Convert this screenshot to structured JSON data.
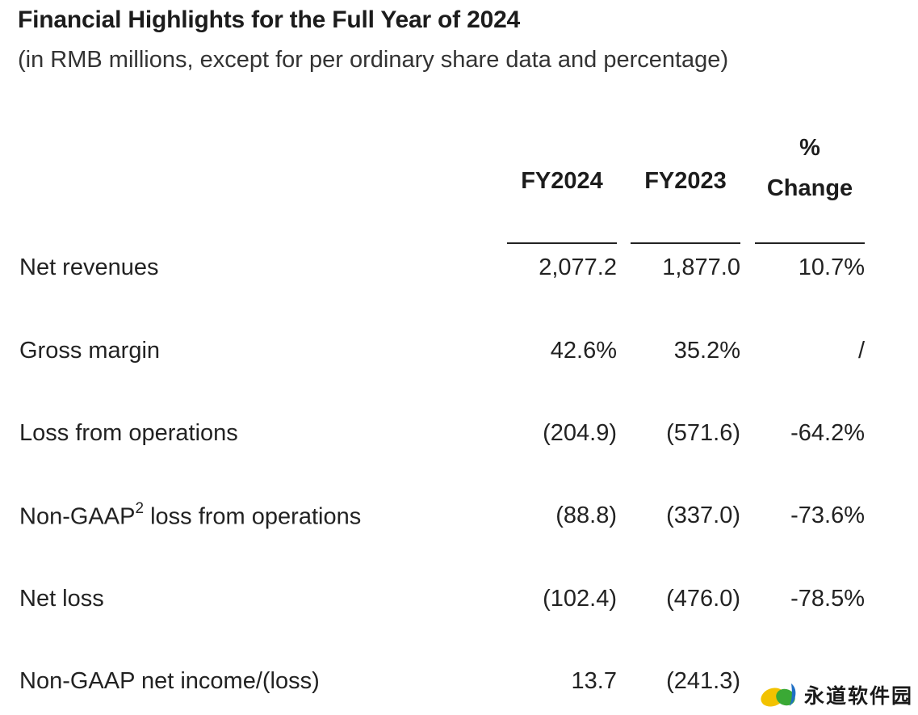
{
  "header": {
    "title": "Financial Highlights for the Full Year of 2024",
    "subtitle": "(in RMB millions, except for per ordinary share data and percentage)"
  },
  "table": {
    "columns": [
      {
        "line1": "",
        "line2": "FY2024"
      },
      {
        "line1": "",
        "line2": "FY2023"
      },
      {
        "line1": "%",
        "line2": "Change"
      }
    ],
    "rows": [
      {
        "label": "Net revenues",
        "sup": "",
        "label_rest": "",
        "fy2024": "2,077.2",
        "fy2023": "1,877.0",
        "change": "10.7%"
      },
      {
        "label": "Gross margin",
        "sup": "",
        "label_rest": "",
        "fy2024": "42.6%",
        "fy2023": "35.2%",
        "change": "/"
      },
      {
        "label": "Loss from operations",
        "sup": "",
        "label_rest": "",
        "fy2024": "(204.9)",
        "fy2023": "(571.6)",
        "change": "-64.2%"
      },
      {
        "label": "Non-GAAP",
        "sup": "2",
        "label_rest": " loss from operations",
        "fy2024": "(88.8)",
        "fy2023": "(337.0)",
        "change": "-73.6%"
      },
      {
        "label": "Net loss",
        "sup": "",
        "label_rest": "",
        "fy2024": "(102.4)",
        "fy2023": "(476.0)",
        "change": "-78.5%"
      },
      {
        "label": "Non-GAAP net income/(loss)",
        "sup": "",
        "label_rest": "",
        "fy2024": "13.7",
        "fy2023": "(241.3)",
        "change": ""
      }
    ]
  },
  "watermark": {
    "text": "永道软件园",
    "icon": "leaf-logo-icon",
    "colors": {
      "yellow": "#f2c200",
      "green": "#3aa935",
      "blue": "#1f6fc5"
    }
  }
}
